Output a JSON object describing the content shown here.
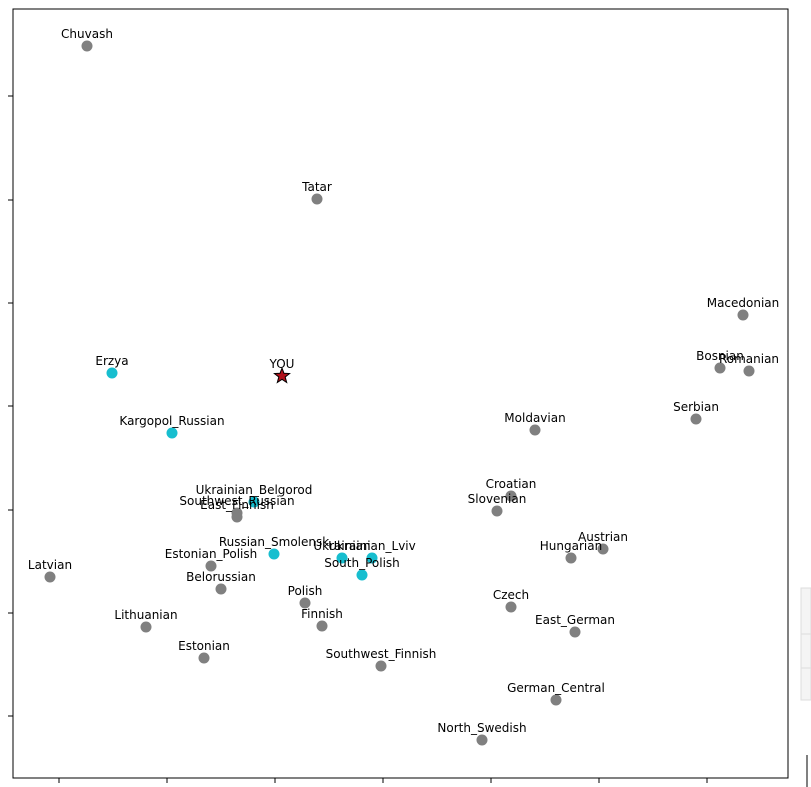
{
  "chart_data": {
    "type": "scatter",
    "xlim": [
      0,
      775
    ],
    "ylim": [
      0,
      769
    ],
    "xticks": [
      46,
      154,
      262,
      370,
      478,
      586,
      694
    ],
    "yticks": [
      62,
      165,
      268,
      372,
      475,
      578,
      682
    ],
    "points": [
      {
        "label": "Chuvash",
        "x": 74,
        "y": 732,
        "color": "#808080"
      },
      {
        "label": "Tatar",
        "x": 304,
        "y": 579,
        "color": "#808080"
      },
      {
        "label": "Macedonian",
        "x": 730,
        "y": 463,
        "color": "#808080"
      },
      {
        "label": "Bosnian",
        "x": 707,
        "y": 410,
        "color": "#808080"
      },
      {
        "label": "Romanian",
        "x": 736,
        "y": 407,
        "color": "#808080"
      },
      {
        "label": "Serbian",
        "x": 683,
        "y": 359,
        "color": "#808080"
      },
      {
        "label": "Erzya",
        "x": 99,
        "y": 405,
        "color": "#17becf"
      },
      {
        "label": "YOU",
        "x": 269,
        "y": 402,
        "color": "#b0101a",
        "marker": "star"
      },
      {
        "label": "Kargopol_Russian",
        "x": 159,
        "y": 345,
        "color": "#17becf"
      },
      {
        "label": "Moldavian",
        "x": 522,
        "y": 348,
        "color": "#808080"
      },
      {
        "label": "Ukrainian_Belgorod",
        "x": 241,
        "y": 276,
        "color": "#17becf"
      },
      {
        "label": "Southwest_Russian",
        "x": 224,
        "y": 265,
        "color": "#808080"
      },
      {
        "label": "East_Finnish",
        "x": 224,
        "y": 261,
        "color": "#808080"
      },
      {
        "label": "Croatian",
        "x": 498,
        "y": 282,
        "color": "#808080"
      },
      {
        "label": "Slovenian",
        "x": 484,
        "y": 267,
        "color": "#808080"
      },
      {
        "label": "Russian_Smolensk",
        "x": 261,
        "y": 224,
        "color": "#17becf"
      },
      {
        "label": "Ukrainian",
        "x": 329,
        "y": 220,
        "color": "#17becf"
      },
      {
        "label": "Ukrainian_Lviv",
        "x": 359,
        "y": 220,
        "color": "#17becf"
      },
      {
        "label": "South_Polish",
        "x": 349,
        "y": 203,
        "color": "#17becf"
      },
      {
        "label": "Estonian_Polish",
        "x": 198,
        "y": 212,
        "color": "#808080"
      },
      {
        "label": "Austrian",
        "x": 590,
        "y": 229,
        "color": "#808080"
      },
      {
        "label": "Hungarian",
        "x": 558,
        "y": 220,
        "color": "#808080"
      },
      {
        "label": "Latvian",
        "x": 37,
        "y": 201,
        "color": "#808080"
      },
      {
        "label": "Belorussian",
        "x": 208,
        "y": 189,
        "color": "#808080"
      },
      {
        "label": "Polish",
        "x": 292,
        "y": 175,
        "color": "#808080"
      },
      {
        "label": "Czech",
        "x": 498,
        "y": 171,
        "color": "#808080"
      },
      {
        "label": "Lithuanian",
        "x": 133,
        "y": 151,
        "color": "#808080"
      },
      {
        "label": "Finnish",
        "x": 309,
        "y": 152,
        "color": "#808080"
      },
      {
        "label": "East_German",
        "x": 562,
        "y": 146,
        "color": "#808080"
      },
      {
        "label": "Estonian",
        "x": 191,
        "y": 120,
        "color": "#808080"
      },
      {
        "label": "Southwest_Finnish",
        "x": 368,
        "y": 112,
        "color": "#808080"
      },
      {
        "label": "German_Central",
        "x": 543,
        "y": 78,
        "color": "#808080"
      },
      {
        "label": "North_Swedish",
        "x": 469,
        "y": 38,
        "color": "#808080"
      }
    ]
  }
}
